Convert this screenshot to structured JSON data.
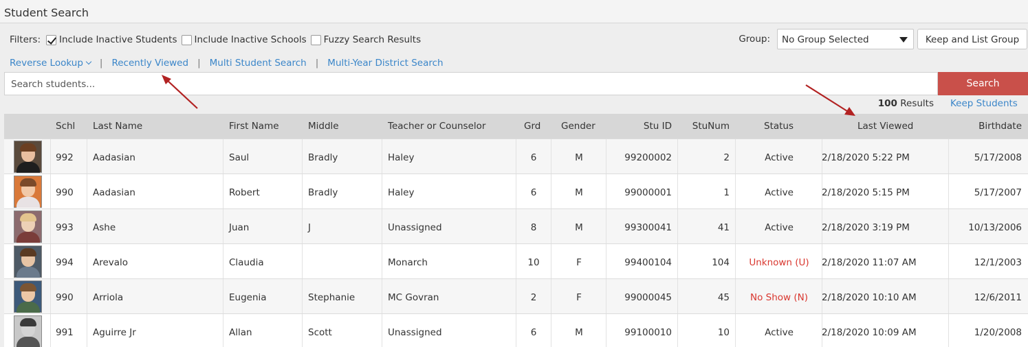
{
  "page": {
    "title": "Student Search"
  },
  "filters": {
    "label": "Filters:",
    "items": [
      {
        "label": "Include Inactive Students",
        "checked": true
      },
      {
        "label": "Include Inactive Schools",
        "checked": false
      },
      {
        "label": "Fuzzy Search Results",
        "checked": false
      }
    ]
  },
  "group": {
    "label": "Group:",
    "selected": "No Group Selected",
    "keep_button": "Keep and List Group"
  },
  "links": {
    "reverse_lookup": "Reverse Lookup",
    "recently_viewed": "Recently Viewed",
    "multi_student": "Multi Student Search",
    "multi_year": "Multi-Year District Search",
    "separator": "|"
  },
  "search": {
    "placeholder": "Search students...",
    "button": "Search"
  },
  "results": {
    "count": "100",
    "label": "Results",
    "keep_students": "Keep Students"
  },
  "table": {
    "columns": [
      "Schl",
      "Last Name",
      "First Name",
      "Middle",
      "Teacher or Counselor",
      "Grd",
      "Gender",
      "Stu ID",
      "StuNum",
      "Status",
      "Last Viewed",
      "Birthdate"
    ],
    "rows": [
      {
        "schl": "992",
        "last": "Aadasian",
        "first": "Saul",
        "middle": "Bradly",
        "teacher": "Haley",
        "grd": "6",
        "gender": "M",
        "stuid": "99200002",
        "stunum": "2",
        "status": "Active",
        "status_alert": false,
        "last_viewed": "2/18/2020 5:22 PM",
        "birthdate": "5/17/2008",
        "photo": {
          "bg": "#5a4a3c",
          "skin": "#e9bfa0",
          "hair": "#6b3f22",
          "shirt": "#1e1e1e"
        }
      },
      {
        "schl": "990",
        "last": "Aadasian",
        "first": "Robert",
        "middle": "Bradly",
        "teacher": "Haley",
        "grd": "6",
        "gender": "M",
        "stuid": "99000001",
        "stunum": "1",
        "status": "Active",
        "status_alert": false,
        "last_viewed": "2/18/2020 5:15 PM",
        "birthdate": "5/17/2007",
        "photo": {
          "bg": "#d9793a",
          "skin": "#f1c9a8",
          "hair": "#7a4a2a",
          "shirt": "#e8e2e4"
        }
      },
      {
        "schl": "993",
        "last": "Ashe",
        "first": "Juan",
        "middle": "J",
        "teacher": "Unassigned",
        "grd": "8",
        "gender": "M",
        "stuid": "99300041",
        "stunum": "41",
        "status": "Active",
        "status_alert": false,
        "last_viewed": "2/18/2020 3:19 PM",
        "birthdate": "10/13/2006",
        "photo": {
          "bg": "#8c6b6e",
          "skin": "#edd0b6",
          "hair": "#e3c48e",
          "shirt": "#7a3d3a"
        }
      },
      {
        "schl": "994",
        "last": "Arevalo",
        "first": "Claudia",
        "middle": "",
        "teacher": "Monarch",
        "grd": "10",
        "gender": "F",
        "stuid": "99400104",
        "stunum": "104",
        "status": "Unknown (U)",
        "status_alert": true,
        "last_viewed": "2/18/2020 11:07 AM",
        "birthdate": "12/1/2003",
        "photo": {
          "bg": "#4e5a66",
          "skin": "#e7c4a5",
          "hair": "#5a3a22",
          "shirt": "#6a7a8c"
        }
      },
      {
        "schl": "990",
        "last": "Arriola",
        "first": "Eugenia",
        "middle": "Stephanie",
        "teacher": "MC Govran",
        "grd": "2",
        "gender": "F",
        "stuid": "99000045",
        "stunum": "45",
        "status": "No Show (N)",
        "status_alert": true,
        "last_viewed": "2/18/2020 10:10 AM",
        "birthdate": "12/6/2011",
        "photo": {
          "bg": "#3d5a7a",
          "skin": "#ecc7a6",
          "hair": "#7b5533",
          "shirt": "#4b6b4a"
        }
      },
      {
        "schl": "991",
        "last": "Aguirre Jr",
        "first": "Allan",
        "middle": "Scott",
        "teacher": "Unassigned",
        "grd": "6",
        "gender": "M",
        "stuid": "99100010",
        "stunum": "10",
        "status": "Active",
        "status_alert": false,
        "last_viewed": "2/18/2020 10:09 AM",
        "birthdate": "1/20/2008",
        "photo": {
          "bg": "#c8c8c8",
          "skin": "#d4d4d4",
          "hair": "#3a3a3a",
          "shirt": "#555555"
        }
      }
    ]
  },
  "colors": {
    "accent": "#3b86c9",
    "search_button": "#c9504a",
    "alert": "#d9372f",
    "arrow": "#b22222"
  }
}
